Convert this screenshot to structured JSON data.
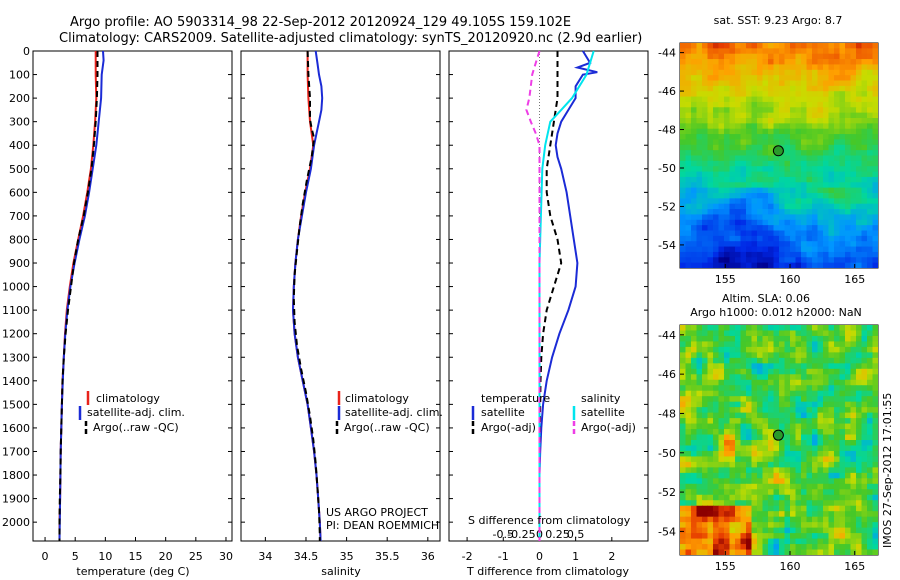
{
  "header": {
    "line1": "Argo profile: AO 5903314_98 22-Sep-2012 20120924_129 49.105S 159.102E",
    "line2": "Climatology: CARS2009. Satellite-adjusted climatology: synTS_20120920.nc (2.9d earlier)"
  },
  "colors": {
    "climatology": "#e8231b",
    "satellite": "#1b2bd6",
    "argo": "#000000",
    "salinity_satellite": "#00e5ee",
    "salinity_argo": "#ee3ee6"
  },
  "chart_data": [
    {
      "type": "line",
      "id": "temperature",
      "xlabel": "temperature (deg C)",
      "ylabel": "",
      "xlim": [
        -2,
        31
      ],
      "ylim": [
        0,
        2080
      ],
      "y_reversed": true,
      "xticks": [
        0,
        5,
        10,
        15,
        20,
        25,
        30
      ],
      "yticks": [
        0,
        100,
        200,
        300,
        400,
        500,
        600,
        700,
        800,
        900,
        1000,
        1100,
        1200,
        1300,
        1400,
        1500,
        1600,
        1700,
        1800,
        1900,
        2000
      ],
      "legend": [
        "climatology",
        "satellite-adj. clim.",
        "Argo(..raw -QC)"
      ],
      "legend_position": "lower-center",
      "series": [
        {
          "name": "climatology",
          "style": "solid",
          "points": [
            [
              8.4,
              0
            ],
            [
              8.4,
              100
            ],
            [
              8.5,
              200
            ],
            [
              8.3,
              300
            ],
            [
              8.0,
              400
            ],
            [
              7.6,
              500
            ],
            [
              7.0,
              600
            ],
            [
              6.3,
              700
            ],
            [
              5.5,
              800
            ],
            [
              4.7,
              900
            ],
            [
              4.1,
              1000
            ],
            [
              3.6,
              1100
            ],
            [
              3.3,
              1200
            ],
            [
              3.1,
              1300
            ],
            [
              2.9,
              1400
            ],
            [
              2.8,
              1500
            ],
            [
              2.7,
              1600
            ],
            [
              2.6,
              1700
            ],
            [
              2.55,
              1800
            ],
            [
              2.5,
              1900
            ],
            [
              2.4,
              2000
            ],
            [
              2.4,
              2080
            ]
          ]
        },
        {
          "name": "satellite-adj. clim.",
          "style": "solid",
          "points": [
            [
              9.6,
              0
            ],
            [
              9.7,
              40
            ],
            [
              9.4,
              100
            ],
            [
              9.3,
              200
            ],
            [
              8.9,
              300
            ],
            [
              8.5,
              400
            ],
            [
              7.9,
              500
            ],
            [
              7.3,
              600
            ],
            [
              6.6,
              700
            ],
            [
              5.7,
              800
            ],
            [
              4.9,
              900
            ],
            [
              4.2,
              1000
            ],
            [
              3.7,
              1100
            ],
            [
              3.35,
              1200
            ],
            [
              3.1,
              1300
            ],
            [
              2.95,
              1400
            ],
            [
              2.8,
              1500
            ],
            [
              2.7,
              1600
            ],
            [
              2.6,
              1700
            ],
            [
              2.55,
              1800
            ],
            [
              2.5,
              1900
            ],
            [
              2.45,
              2000
            ],
            [
              2.4,
              2080
            ]
          ]
        },
        {
          "name": "Argo(..raw -QC)",
          "style": "dashed",
          "points": [
            [
              8.7,
              0
            ],
            [
              8.7,
              100
            ],
            [
              8.6,
              200
            ],
            [
              8.4,
              300
            ],
            [
              8.1,
              400
            ],
            [
              7.7,
              500
            ],
            [
              7.1,
              600
            ],
            [
              6.4,
              700
            ],
            [
              5.5,
              800
            ],
            [
              4.8,
              900
            ],
            [
              4.3,
              1000
            ],
            [
              3.8,
              1100
            ],
            [
              3.4,
              1200
            ],
            [
              3.1,
              1300
            ],
            [
              2.9,
              1400
            ],
            [
              2.8,
              1500
            ],
            [
              2.7,
              1600
            ],
            [
              2.6,
              1700
            ],
            [
              2.55,
              1800
            ],
            [
              2.45,
              1900
            ],
            [
              2.4,
              2000
            ],
            [
              2.4,
              2080
            ]
          ]
        }
      ]
    },
    {
      "type": "line",
      "id": "salinity",
      "xlabel": "salinity",
      "ylabel": "",
      "xlim": [
        33.7,
        36.15
      ],
      "ylim": [
        0,
        2080
      ],
      "y_reversed": true,
      "xticks": [
        34,
        34.5,
        35,
        35.5,
        36
      ],
      "legend": [
        "climatology",
        "satellite-adj. clim.",
        "Argo(..raw -QC)"
      ],
      "legend_position": "lower-center",
      "annotations": [
        "US ARGO PROJECT",
        "PI: DEAN ROEMMICH"
      ],
      "series": [
        {
          "name": "climatology",
          "style": "solid",
          "points": [
            [
              34.52,
              0
            ],
            [
              34.52,
              100
            ],
            [
              34.53,
              200
            ],
            [
              34.55,
              300
            ],
            [
              34.59,
              400
            ],
            [
              34.55,
              500
            ],
            [
              34.49,
              600
            ],
            [
              34.44,
              700
            ],
            [
              34.4,
              800
            ],
            [
              34.37,
              900
            ],
            [
              34.35,
              1000
            ],
            [
              34.34,
              1100
            ],
            [
              34.36,
              1200
            ],
            [
              34.4,
              1300
            ],
            [
              34.46,
              1400
            ],
            [
              34.52,
              1500
            ],
            [
              34.56,
              1600
            ],
            [
              34.6,
              1700
            ],
            [
              34.63,
              1800
            ],
            [
              34.65,
              1900
            ],
            [
              34.67,
              2000
            ],
            [
              34.68,
              2080
            ]
          ]
        },
        {
          "name": "satellite-adj. clim.",
          "style": "solid",
          "points": [
            [
              34.62,
              0
            ],
            [
              34.64,
              50
            ],
            [
              34.66,
              100
            ],
            [
              34.69,
              150
            ],
            [
              34.7,
              200
            ],
            [
              34.69,
              250
            ],
            [
              34.66,
              300
            ],
            [
              34.63,
              350
            ],
            [
              34.6,
              400
            ],
            [
              34.56,
              500
            ],
            [
              34.5,
              600
            ],
            [
              34.45,
              700
            ],
            [
              34.4,
              800
            ],
            [
              34.37,
              900
            ],
            [
              34.35,
              1000
            ],
            [
              34.34,
              1100
            ],
            [
              34.36,
              1200
            ],
            [
              34.4,
              1300
            ],
            [
              34.46,
              1400
            ],
            [
              34.52,
              1500
            ],
            [
              34.56,
              1600
            ],
            [
              34.6,
              1700
            ],
            [
              34.63,
              1800
            ],
            [
              34.65,
              1900
            ],
            [
              34.67,
              2000
            ],
            [
              34.68,
              2080
            ]
          ]
        },
        {
          "name": "Argo(..raw -QC)",
          "style": "dashed",
          "points": [
            [
              34.52,
              0
            ],
            [
              34.53,
              100
            ],
            [
              34.55,
              200
            ],
            [
              34.55,
              290
            ],
            [
              34.57,
              330
            ],
            [
              34.6,
              370
            ],
            [
              34.57,
              450
            ],
            [
              34.51,
              550
            ],
            [
              34.46,
              650
            ],
            [
              34.42,
              750
            ],
            [
              34.39,
              850
            ],
            [
              34.36,
              950
            ],
            [
              34.35,
              1050
            ],
            [
              34.36,
              1150
            ],
            [
              34.39,
              1250
            ],
            [
              34.44,
              1350
            ],
            [
              34.5,
              1450
            ],
            [
              34.55,
              1550
            ],
            [
              34.59,
              1650
            ],
            [
              34.62,
              1750
            ],
            [
              34.64,
              1850
            ],
            [
              34.66,
              1950
            ],
            [
              34.67,
              2050
            ],
            [
              34.67,
              2080
            ]
          ]
        }
      ]
    },
    {
      "type": "line",
      "id": "differences",
      "xlabel": "T difference from climatology",
      "xlabel_top": "S difference from climatology",
      "ylabel": "",
      "xlim": [
        -2.5,
        3.0
      ],
      "ylim": [
        0,
        2080
      ],
      "y_reversed": true,
      "xticks": [
        -2,
        -1,
        0,
        1,
        2
      ],
      "xticks_s": [
        -0.5,
        -0.25,
        0,
        0.25,
        0.5
      ],
      "legend_left_title": "temperature",
      "legend_right_title": "salinity",
      "legend": [
        "satellite",
        "Argo(-adj)",
        "satellite",
        "Argo(-adj)"
      ],
      "legend_position": "lower-center",
      "series": [
        {
          "name": "satellite",
          "group": "temperature",
          "style": "solid",
          "points": [
            [
              1.2,
              0
            ],
            [
              1.4,
              50
            ],
            [
              1.05,
              70
            ],
            [
              1.6,
              90
            ],
            [
              1.2,
              100
            ],
            [
              1.0,
              150
            ],
            [
              1.0,
              200
            ],
            [
              0.8,
              250
            ],
            [
              0.6,
              300
            ],
            [
              0.5,
              350
            ],
            [
              0.45,
              400
            ],
            [
              0.5,
              450
            ],
            [
              0.6,
              500
            ],
            [
              0.75,
              600
            ],
            [
              0.85,
              700
            ],
            [
              0.95,
              800
            ],
            [
              1.05,
              900
            ],
            [
              1.0,
              1000
            ],
            [
              0.8,
              1100
            ],
            [
              0.55,
              1200
            ],
            [
              0.35,
              1300
            ],
            [
              0.2,
              1400
            ],
            [
              0.1,
              1500
            ],
            [
              0.05,
              1600
            ],
            [
              0.02,
              1700
            ],
            [
              0,
              1800
            ],
            [
              0,
              1900
            ],
            [
              0,
              2000
            ],
            [
              0,
              2080
            ]
          ]
        },
        {
          "name": "Argo(-adj)",
          "group": "temperature",
          "style": "dashed",
          "points": [
            [
              0.5,
              0
            ],
            [
              0.5,
              100
            ],
            [
              0.5,
              200
            ],
            [
              0.4,
              300
            ],
            [
              0.3,
              400
            ],
            [
              0.2,
              500
            ],
            [
              0.2,
              600
            ],
            [
              0.3,
              700
            ],
            [
              0.5,
              800
            ],
            [
              0.6,
              900
            ],
            [
              0.4,
              1000
            ],
            [
              0.2,
              1100
            ],
            [
              0.1,
              1200
            ],
            [
              0.05,
              1300
            ],
            [
              0.03,
              1400
            ],
            [
              0.02,
              1500
            ],
            [
              0.01,
              1600
            ],
            [
              0,
              1700
            ],
            [
              0,
              1800
            ],
            [
              0,
              1900
            ],
            [
              0,
              2000
            ],
            [
              0,
              2080
            ]
          ]
        },
        {
          "name": "satellite",
          "group": "salinity",
          "style": "solid",
          "points": [
            [
              0.75,
              0
            ],
            [
              0.7,
              50
            ],
            [
              0.65,
              100
            ],
            [
              0.55,
              150
            ],
            [
              0.45,
              200
            ],
            [
              0.3,
              250
            ],
            [
              0.15,
              300
            ],
            [
              0.08,
              400
            ],
            [
              0.04,
              500
            ],
            [
              0.02,
              700
            ],
            [
              0,
              900
            ],
            [
              0,
              1100
            ],
            [
              0,
              1300
            ],
            [
              0,
              1500
            ],
            [
              0,
              1700
            ],
            [
              0,
              1900
            ],
            [
              0,
              2080
            ]
          ]
        },
        {
          "name": "Argo(-adj)",
          "group": "salinity",
          "style": "dashed",
          "points": [
            [
              0,
              0
            ],
            [
              -0.05,
              50
            ],
            [
              -0.1,
              100
            ],
            [
              -0.12,
              150
            ],
            [
              -0.14,
              200
            ],
            [
              -0.18,
              250
            ],
            [
              -0.12,
              300
            ],
            [
              -0.05,
              350
            ],
            [
              0,
              400
            ],
            [
              0,
              500
            ],
            [
              0,
              700
            ],
            [
              0,
              900
            ],
            [
              0,
              1100
            ],
            [
              0,
              1300
            ],
            [
              0,
              1500
            ],
            [
              0,
              1700
            ],
            [
              0,
              1900
            ],
            [
              0,
              2080
            ]
          ]
        }
      ]
    },
    {
      "type": "heatmap",
      "id": "sst-map",
      "title": "sat. SST: 9.23  Argo: 8.7",
      "xlim": [
        151.5,
        166.8
      ],
      "ylim": [
        -55.2,
        -43.5
      ],
      "xticks": [
        155,
        160,
        165
      ],
      "yticks": [
        -44,
        -46,
        -48,
        -50,
        -52,
        -54
      ],
      "marker": {
        "lon": 159.102,
        "lat": -49.105
      }
    },
    {
      "type": "heatmap",
      "id": "sla-map",
      "title": "Altim. SLA: 0.06",
      "subtitle": "Argo h1000: 0.012 h2000: NaN",
      "xlim": [
        151.5,
        166.8
      ],
      "ylim": [
        -55.2,
        -43.5
      ],
      "xticks": [
        155,
        160,
        165
      ],
      "yticks": [
        -44,
        -46,
        -48,
        -50,
        -52,
        -54
      ],
      "marker": {
        "lon": 159.102,
        "lat": -49.105
      }
    }
  ],
  "credit": "IMOS 27-Sep-2012 17:01:55"
}
